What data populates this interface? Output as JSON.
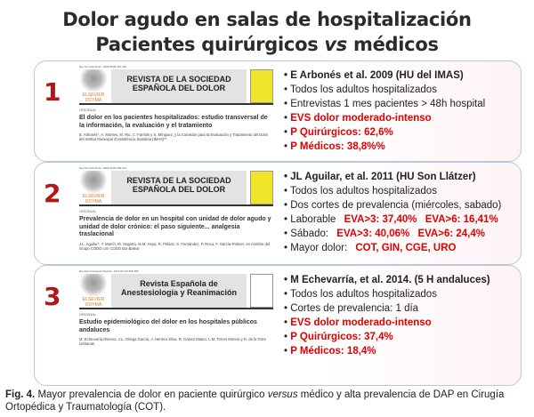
{
  "title": {
    "line1": "Dolor agudo en salas de hospitalización",
    "line2": "Pacientes quirúrgicos vs médicos"
  },
  "panels": [
    {
      "number": "1",
      "ref": "Rev Soc Esp Dolor. 2009;16(6):314-322",
      "journal": "REVISTA DE LA SOCIEDAD ESPAÑOLA DEL DOLOR",
      "publisher": "ELSEVIER DOYMA",
      "section": "ORIGINAL",
      "article_title": "El dolor en los pacientes hospitalizados: estudio transversal de la información, la evaluación y el tratamiento",
      "authors": "E. Arbonés*, A. Montes, M. Riu, C. Farriols y S. Mínguez; y la Comisión para la Evaluación y Tratamiento del Dolor del Institut Municipal d'Assistència Sanitària (IMAS)**",
      "bullets": [
        {
          "text": "E Arbonés et al. 2009 (HU del IMAS)",
          "style": "bold"
        },
        {
          "text": "Todos los adultos hospitalizados",
          "style": "normal"
        },
        {
          "text": "Entrevistas 1 mes pacientes > 48h hospital",
          "style": "normal"
        },
        {
          "text": "EVS dolor moderado-intenso",
          "style": "red"
        },
        {
          "text": "P Quirúrgicos: 62,6%",
          "style": "red"
        },
        {
          "text": "P Médicos: 38,8%%",
          "style": "red"
        }
      ]
    },
    {
      "number": "2",
      "ref": "Rev Soc Esp Dolor. 2009;16(4):209-214",
      "journal": "REVISTA DE LA SOCIEDAD ESPAÑOLA DEL DOLOR",
      "publisher": "ELSEVIER DOYMA",
      "section": "ORIGINAL",
      "article_title": "Prevalencia de dolor en un hospital con unidad de dolor agudo y unidad de dolor crónico: el paso siguiente... analgesia traslacional",
      "authors": "J.L. Aguilar*, Y. March, M. Segarra, M.M. Hoyá, R. Peláez, S. Fernández, P. Roca, F. García-Palmer; en nombre del Grupo CODO con CODO Bio-Balear",
      "bullets": [
        {
          "text": "JL Aguilar, et al. 2011 (HU Son Llátzer)",
          "style": "bold"
        },
        {
          "text": "Todos los adultos hospitalizados",
          "style": "normal"
        },
        {
          "text": "Dos cortes de prevalencia (miércoles, sabado)",
          "style": "normal"
        },
        {
          "text": "Laborable",
          "style": "normal",
          "extra": [
            "EVA>3: 37,40%",
            "EVA>6: 16,41%"
          ]
        },
        {
          "text": "Sábado:",
          "style": "normal",
          "extra": [
            "EVA>3: 40,06%",
            "EVA>6: 24,4%"
          ]
        },
        {
          "text": "Mayor dolor:",
          "style": "normal",
          "extra": [
            "COT, GIN, CGE, URO"
          ]
        }
      ]
    },
    {
      "number": "3",
      "ref": "Rev Esp Anestesiol Reanim. 2014;61(10):549-556",
      "journal": "Revista Española de Anestesiología y Reanimación",
      "publisher": "ELSEVIER DOYMA",
      "section": "ORIGINAL",
      "article_title": "Estudio epidemiológico del dolor en los hospitales públicos andaluces",
      "authors": "M. Echevarría Moreno, J.L. Ortega García, J. Herrera Silva, R. Galvez Mateo, L.M. Torres Morera y R. de la Torre Liebanas",
      "bullets": [
        {
          "text": "M Echevarría, et al. 2014. (5 H andaluces)",
          "style": "bold"
        },
        {
          "text": "Todos los adultos hospitalizados",
          "style": "normal"
        },
        {
          "text": "Cortes de prevalencia: 1 día",
          "style": "normal"
        },
        {
          "text": "EVS dolor moderado-intenso",
          "style": "red"
        },
        {
          "text": "P Quirúrgicos: 37,4%",
          "style": "red"
        },
        {
          "text": "P Médicos: 18,4%",
          "style": "red"
        }
      ]
    }
  ],
  "caption": {
    "label": "Fig. 4.",
    "text1": "Mayor prevalencia de dolor en paciente quirúrgico ",
    "italic": "versus",
    "text2": " médico y alta prevalencia de DAP en Cirugía Ortopédica y Traumatología (COT)."
  },
  "colors": {
    "accent_red": "#e00000",
    "number_red": "#b01818"
  }
}
